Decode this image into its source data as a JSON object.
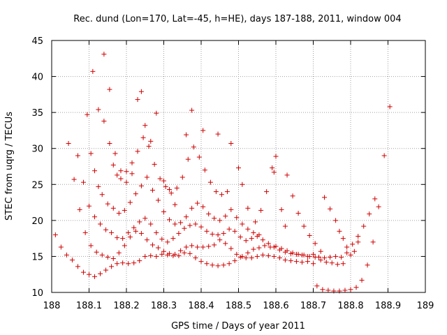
{
  "chart_data": {
    "type": "scatter",
    "title": "Rec. dund (Lon=170, Lat=-45, h=HE), days 187-188, 2011, window 004",
    "xlabel": "GPS time / Days of year 2011",
    "ylabel": "STEC from uqrg / TECUs",
    "xlim": [
      188,
      189
    ],
    "ylim": [
      10,
      45
    ],
    "xticks": [
      "188",
      "188.1",
      "188.2",
      "188.3",
      "188.4",
      "188.5",
      "188.6",
      "188.7",
      "188.8",
      "188.9",
      "189"
    ],
    "yticks": [
      "10",
      "15",
      "20",
      "25",
      "30",
      "35",
      "40",
      "45"
    ],
    "grid": true,
    "marker": "plus",
    "color": "#d00000",
    "series": [
      {
        "points": [
          [
            188.01,
            18.0
          ],
          [
            188.025,
            16.3
          ],
          [
            188.04,
            15.2
          ],
          [
            188.055,
            14.5
          ],
          [
            188.07,
            13.6
          ],
          [
            188.085,
            12.8
          ],
          [
            188.1,
            12.5
          ],
          [
            188.115,
            12.2
          ],
          [
            188.13,
            12.6
          ],
          [
            188.145,
            13.1
          ],
          [
            188.16,
            13.6
          ],
          [
            188.175,
            14.0
          ],
          [
            188.19,
            14.1
          ],
          [
            188.205,
            14.0
          ],
          [
            188.22,
            14.1
          ],
          [
            188.235,
            14.4
          ],
          [
            188.25,
            15.0
          ],
          [
            188.265,
            15.1
          ],
          [
            188.28,
            15.0
          ],
          [
            188.295,
            15.3
          ],
          [
            188.31,
            15.2
          ],
          [
            188.325,
            15.1
          ],
          [
            188.34,
            15.1
          ],
          [
            188.355,
            15.5
          ],
          [
            188.37,
            15.4
          ],
          [
            188.385,
            14.8
          ],
          [
            188.4,
            14.3
          ],
          [
            188.415,
            14.0
          ],
          [
            188.43,
            13.8
          ],
          [
            188.445,
            13.7
          ],
          [
            188.46,
            13.8
          ],
          [
            188.475,
            14.0
          ],
          [
            188.49,
            14.4
          ],
          [
            188.505,
            14.9
          ],
          [
            188.52,
            14.8
          ],
          [
            188.535,
            14.8
          ],
          [
            188.55,
            15.0
          ],
          [
            188.565,
            15.2
          ],
          [
            188.58,
            15.1
          ],
          [
            188.595,
            15.0
          ],
          [
            188.61,
            14.8
          ],
          [
            188.625,
            14.5
          ],
          [
            188.64,
            14.4
          ],
          [
            188.655,
            14.3
          ],
          [
            188.67,
            14.2
          ],
          [
            188.685,
            14.3
          ],
          [
            188.7,
            14.0
          ]
        ]
      },
      {
        "points": [
          [
            188.045,
            30.7
          ],
          [
            188.06,
            25.7
          ],
          [
            188.075,
            21.5
          ],
          [
            188.09,
            18.3
          ],
          [
            188.105,
            16.5
          ],
          [
            188.12,
            15.6
          ],
          [
            188.135,
            15.2
          ],
          [
            188.15,
            14.9
          ],
          [
            188.165,
            14.7
          ],
          [
            188.18,
            15.5
          ],
          [
            188.195,
            16.5
          ],
          [
            188.21,
            17.7
          ],
          [
            188.225,
            18.5
          ],
          [
            188.24,
            18.2
          ],
          [
            188.255,
            17.3
          ],
          [
            188.27,
            16.6
          ],
          [
            188.285,
            16.2
          ],
          [
            188.3,
            15.7
          ],
          [
            188.315,
            15.4
          ],
          [
            188.33,
            15.3
          ],
          [
            188.345,
            15.8
          ],
          [
            188.36,
            16.3
          ],
          [
            188.375,
            16.5
          ],
          [
            188.39,
            16.3
          ],
          [
            188.405,
            16.3
          ],
          [
            188.42,
            16.4
          ],
          [
            188.435,
            16.6
          ],
          [
            188.45,
            17.3
          ],
          [
            188.465,
            16.8
          ],
          [
            188.48,
            16.1
          ],
          [
            188.495,
            15.3
          ],
          [
            188.51,
            15.0
          ],
          [
            188.525,
            15.5
          ],
          [
            188.54,
            16.0
          ],
          [
            188.555,
            16.2
          ],
          [
            188.57,
            16.5
          ],
          [
            188.585,
            16.3
          ],
          [
            188.6,
            16.4
          ],
          [
            188.615,
            16.1
          ],
          [
            188.63,
            15.8
          ],
          [
            188.645,
            15.5
          ],
          [
            188.66,
            15.3
          ],
          [
            188.675,
            15.2
          ],
          [
            188.69,
            15.0
          ],
          [
            188.705,
            14.9
          ],
          [
            188.72,
            14.5
          ],
          [
            188.735,
            14.2
          ],
          [
            188.75,
            14.1
          ],
          [
            188.765,
            13.9
          ],
          [
            188.78,
            14.0
          ]
        ]
      },
      {
        "points": [
          [
            188.07,
            29.0
          ],
          [
            188.085,
            25.3
          ],
          [
            188.1,
            22.0
          ],
          [
            188.115,
            20.5
          ],
          [
            188.13,
            19.5
          ],
          [
            188.145,
            18.7
          ],
          [
            188.16,
            18.3
          ],
          [
            188.175,
            17.6
          ],
          [
            188.19,
            17.5
          ],
          [
            188.205,
            18.3
          ],
          [
            188.22,
            19.0
          ],
          [
            188.235,
            19.8
          ],
          [
            188.25,
            20.3
          ],
          [
            188.265,
            19.5
          ],
          [
            188.28,
            18.3
          ],
          [
            188.295,
            17.4
          ],
          [
            188.31,
            17.0
          ],
          [
            188.325,
            17.5
          ],
          [
            188.34,
            18.2
          ],
          [
            188.355,
            18.9
          ],
          [
            188.37,
            19.3
          ],
          [
            188.385,
            19.5
          ],
          [
            188.4,
            19.1
          ],
          [
            188.415,
            18.5
          ],
          [
            188.43,
            18.1
          ],
          [
            188.445,
            18.0
          ],
          [
            188.46,
            18.2
          ],
          [
            188.475,
            18.8
          ],
          [
            188.49,
            18.5
          ],
          [
            188.505,
            17.7
          ],
          [
            188.52,
            17.2
          ],
          [
            188.535,
            17.5
          ],
          [
            188.55,
            17.8
          ],
          [
            188.565,
            17.3
          ],
          [
            188.58,
            16.8
          ],
          [
            188.595,
            16.3
          ],
          [
            188.61,
            15.9
          ],
          [
            188.625,
            15.6
          ],
          [
            188.64,
            15.4
          ],
          [
            188.655,
            15.3
          ],
          [
            188.67,
            15.2
          ],
          [
            188.685,
            15.0
          ]
        ]
      },
      {
        "points": [
          [
            188.095,
            34.7
          ],
          [
            188.105,
            29.3
          ],
          [
            188.115,
            26.9
          ],
          [
            188.125,
            24.7
          ],
          [
            188.135,
            23.6
          ],
          [
            188.15,
            22.3
          ],
          [
            188.165,
            21.7
          ],
          [
            188.18,
            21.0
          ],
          [
            188.195,
            21.4
          ],
          [
            188.21,
            22.5
          ],
          [
            188.225,
            23.7
          ],
          [
            188.24,
            24.8
          ],
          [
            188.255,
            26.0
          ],
          [
            188.27,
            24.2
          ],
          [
            188.285,
            22.8
          ],
          [
            188.3,
            21.2
          ],
          [
            188.315,
            20.1
          ],
          [
            188.33,
            19.5
          ],
          [
            188.345,
            19.7
          ],
          [
            188.36,
            20.5
          ],
          [
            188.375,
            21.7
          ],
          [
            188.39,
            22.4
          ],
          [
            188.405,
            21.9
          ],
          [
            188.42,
            20.9
          ],
          [
            188.435,
            20.3
          ],
          [
            188.45,
            20.0
          ],
          [
            188.465,
            20.6
          ],
          [
            188.48,
            21.5
          ],
          [
            188.495,
            20.4
          ],
          [
            188.51,
            19.5
          ],
          [
            188.525,
            18.8
          ],
          [
            188.54,
            18.3
          ],
          [
            188.555,
            18.0
          ]
        ]
      },
      {
        "points": [
          [
            188.11,
            40.7
          ],
          [
            188.125,
            35.4
          ],
          [
            188.14,
            33.8
          ],
          [
            188.155,
            30.7
          ],
          [
            188.165,
            27.7
          ],
          [
            188.175,
            26.3
          ],
          [
            188.185,
            25.8
          ],
          [
            188.2,
            26.8
          ],
          [
            188.215,
            28.0
          ],
          [
            188.23,
            29.6
          ],
          [
            188.245,
            31.5
          ],
          [
            188.26,
            30.3
          ],
          [
            188.275,
            27.8
          ],
          [
            188.29,
            25.8
          ],
          [
            188.305,
            24.7
          ],
          [
            188.32,
            23.8
          ],
          [
            188.335,
            24.5
          ],
          [
            188.35,
            26.0
          ],
          [
            188.365,
            28.5
          ],
          [
            188.38,
            30.2
          ],
          [
            188.395,
            28.8
          ],
          [
            188.41,
            27.0
          ],
          [
            188.425,
            25.3
          ],
          [
            188.44,
            24.0
          ],
          [
            188.455,
            23.6
          ],
          [
            188.47,
            24.0
          ]
        ]
      },
      {
        "points": [
          [
            188.14,
            43.1
          ],
          [
            188.155,
            38.2
          ],
          [
            188.17,
            29.3
          ],
          [
            188.185,
            26.9
          ],
          [
            188.2,
            25.3
          ],
          [
            188.215,
            26.5
          ],
          [
            188.23,
            36.8
          ],
          [
            188.24,
            37.9
          ],
          [
            188.25,
            33.2
          ],
          [
            188.265,
            31.0
          ],
          [
            188.28,
            34.9
          ],
          [
            188.3,
            25.5
          ],
          [
            188.315,
            24.3
          ],
          [
            188.33,
            22.2
          ],
          [
            188.36,
            31.9
          ],
          [
            188.375,
            35.3
          ],
          [
            188.405,
            32.5
          ],
          [
            188.445,
            32.0
          ],
          [
            188.48,
            30.7
          ],
          [
            188.5,
            27.3
          ],
          [
            188.51,
            25.0
          ],
          [
            188.525,
            21.7
          ],
          [
            188.545,
            19.8
          ],
          [
            188.56,
            21.4
          ],
          [
            188.575,
            24.0
          ],
          [
            188.59,
            27.3
          ],
          [
            188.595,
            26.7
          ],
          [
            188.6,
            28.9
          ],
          [
            188.615,
            21.5
          ],
          [
            188.625,
            19.2
          ],
          [
            188.63,
            26.3
          ],
          [
            188.645,
            23.4
          ],
          [
            188.66,
            21.0
          ],
          [
            188.675,
            19.2
          ],
          [
            188.69,
            17.9
          ],
          [
            188.705,
            16.8
          ],
          [
            188.72,
            15.7
          ]
        ]
      },
      {
        "points": [
          [
            188.71,
            10.9
          ],
          [
            188.725,
            10.4
          ],
          [
            188.74,
            10.3
          ],
          [
            188.755,
            10.2
          ],
          [
            188.77,
            10.2
          ],
          [
            188.785,
            10.3
          ],
          [
            188.8,
            10.4
          ],
          [
            188.815,
            10.7
          ],
          [
            188.83,
            11.7
          ],
          [
            188.845,
            13.8
          ],
          [
            188.86,
            17.0
          ],
          [
            188.875,
            21.9
          ],
          [
            188.89,
            29.0
          ],
          [
            188.905,
            35.8
          ]
        ]
      },
      {
        "points": [
          [
            188.73,
            23.2
          ],
          [
            188.745,
            21.6
          ],
          [
            188.76,
            20.0
          ],
          [
            188.77,
            18.5
          ],
          [
            188.78,
            17.5
          ],
          [
            188.79,
            16.3
          ],
          [
            188.8,
            15.2
          ],
          [
            188.81,
            15.7
          ],
          [
            188.82,
            17.0
          ],
          [
            188.835,
            19.2
          ],
          [
            188.85,
            20.9
          ],
          [
            188.865,
            23.0
          ]
        ]
      },
      {
        "points": [
          [
            188.7,
            15.3
          ],
          [
            188.715,
            14.9
          ],
          [
            188.73,
            14.8
          ],
          [
            188.745,
            14.9
          ],
          [
            188.76,
            15.0
          ],
          [
            188.775,
            14.9
          ],
          [
            188.79,
            15.5
          ],
          [
            188.805,
            16.7
          ],
          [
            188.82,
            17.8
          ]
        ]
      }
    ]
  }
}
